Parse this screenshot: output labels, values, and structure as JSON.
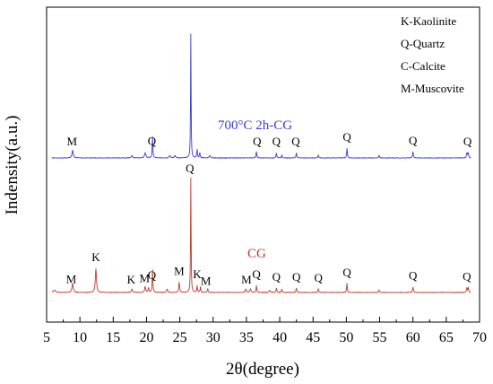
{
  "chart_data": {
    "type": "line",
    "xlabel": "2θ(degree)",
    "ylabel": "Indensity(a.u.)",
    "xlim": [
      5,
      70
    ],
    "xticks": [
      5,
      10,
      15,
      20,
      25,
      30,
      35,
      40,
      45,
      50,
      55,
      60,
      65,
      70
    ],
    "y_ticks_shown": false,
    "legend": {
      "position": "top-right",
      "entries": [
        "K-Kaolinite",
        "Q-Quartz",
        "C-Calcite",
        "M-Muscovite"
      ]
    },
    "series": [
      {
        "name": "700°C 2h-CG",
        "color": "#3b3bd6",
        "baseline": 0.0,
        "peaks": [
          {
            "x": 8.9,
            "h": 0.06,
            "w": 0.22
          },
          {
            "x": 17.8,
            "h": 0.02,
            "w": 0.2
          },
          {
            "x": 19.8,
            "h": 0.04,
            "w": 0.25
          },
          {
            "x": 20.9,
            "h": 0.17,
            "w": 0.12
          },
          {
            "x": 23.5,
            "h": 0.02,
            "w": 0.2
          },
          {
            "x": 24.3,
            "h": 0.02,
            "w": 0.2
          },
          {
            "x": 26.65,
            "h": 1.0,
            "w": 0.09
          },
          {
            "x": 27.6,
            "h": 0.07,
            "w": 0.12
          },
          {
            "x": 28.0,
            "h": 0.04,
            "w": 0.12
          },
          {
            "x": 29.5,
            "h": 0.02,
            "w": 0.2
          },
          {
            "x": 36.5,
            "h": 0.05,
            "w": 0.13
          },
          {
            "x": 39.5,
            "h": 0.04,
            "w": 0.13
          },
          {
            "x": 40.3,
            "h": 0.02,
            "w": 0.13
          },
          {
            "x": 42.5,
            "h": 0.04,
            "w": 0.13
          },
          {
            "x": 45.8,
            "h": 0.02,
            "w": 0.15
          },
          {
            "x": 50.1,
            "h": 0.08,
            "w": 0.12
          },
          {
            "x": 54.9,
            "h": 0.02,
            "w": 0.15
          },
          {
            "x": 60.0,
            "h": 0.05,
            "w": 0.14
          },
          {
            "x": 68.1,
            "h": 0.04,
            "w": 0.14
          },
          {
            "x": 68.3,
            "h": 0.04,
            "w": 0.14
          }
        ],
        "label": "700°C 2h-CG",
        "annotations": [
          {
            "x": 8.8,
            "text": "M"
          },
          {
            "x": 20.8,
            "text": "Q"
          },
          {
            "x": 36.6,
            "text": "Q"
          },
          {
            "x": 39.5,
            "text": "Q"
          },
          {
            "x": 42.4,
            "text": "Q"
          },
          {
            "x": 50.1,
            "text": "Q"
          },
          {
            "x": 60.0,
            "text": "Q"
          },
          {
            "x": 68.2,
            "text": "Q"
          }
        ]
      },
      {
        "name": "CG",
        "color": "#c0392b",
        "baseline": 0.0,
        "peaks": [
          {
            "x": 6.2,
            "h": 0.02,
            "w": 0.4
          },
          {
            "x": 8.9,
            "h": 0.08,
            "w": 0.22
          },
          {
            "x": 12.4,
            "h": 0.21,
            "w": 0.2
          },
          {
            "x": 17.8,
            "h": 0.03,
            "w": 0.2
          },
          {
            "x": 19.8,
            "h": 0.05,
            "w": 0.2
          },
          {
            "x": 20.3,
            "h": 0.04,
            "w": 0.15
          },
          {
            "x": 20.9,
            "h": 0.2,
            "w": 0.12
          },
          {
            "x": 23.1,
            "h": 0.03,
            "w": 0.2
          },
          {
            "x": 24.9,
            "h": 0.09,
            "w": 0.15
          },
          {
            "x": 26.65,
            "h": 1.0,
            "w": 0.09
          },
          {
            "x": 27.6,
            "h": 0.06,
            "w": 0.12
          },
          {
            "x": 28.1,
            "h": 0.05,
            "w": 0.12
          },
          {
            "x": 29.2,
            "h": 0.03,
            "w": 0.15
          },
          {
            "x": 34.9,
            "h": 0.03,
            "w": 0.2
          },
          {
            "x": 35.6,
            "h": 0.03,
            "w": 0.2
          },
          {
            "x": 36.5,
            "h": 0.06,
            "w": 0.13
          },
          {
            "x": 38.5,
            "h": 0.02,
            "w": 0.2
          },
          {
            "x": 39.5,
            "h": 0.04,
            "w": 0.13
          },
          {
            "x": 40.3,
            "h": 0.03,
            "w": 0.13
          },
          {
            "x": 42.5,
            "h": 0.04,
            "w": 0.13
          },
          {
            "x": 45.8,
            "h": 0.03,
            "w": 0.15
          },
          {
            "x": 50.1,
            "h": 0.08,
            "w": 0.12
          },
          {
            "x": 54.9,
            "h": 0.02,
            "w": 0.15
          },
          {
            "x": 60.0,
            "h": 0.05,
            "w": 0.14
          },
          {
            "x": 68.1,
            "h": 0.04,
            "w": 0.14
          },
          {
            "x": 68.3,
            "h": 0.04,
            "w": 0.14
          }
        ],
        "label": "CG",
        "annotations": [
          {
            "x": 8.7,
            "text": "M"
          },
          {
            "x": 12.4,
            "text": "K"
          },
          {
            "x": 17.7,
            "text": "K"
          },
          {
            "x": 19.7,
            "text": "M"
          },
          {
            "x": 20.8,
            "text": "Q"
          },
          {
            "x": 26.5,
            "text": "Q"
          },
          {
            "x": 24.9,
            "text": "M"
          },
          {
            "x": 27.6,
            "text": "K"
          },
          {
            "x": 28.9,
            "text": "M"
          },
          {
            "x": 35.0,
            "text": "M"
          },
          {
            "x": 36.5,
            "text": "Q"
          },
          {
            "x": 39.5,
            "text": "Q"
          },
          {
            "x": 42.5,
            "text": "Q"
          },
          {
            "x": 45.8,
            "text": "Q"
          },
          {
            "x": 50.1,
            "text": "Q"
          },
          {
            "x": 60.0,
            "text": "Q"
          },
          {
            "x": 68.1,
            "text": "Q"
          }
        ]
      }
    ]
  }
}
